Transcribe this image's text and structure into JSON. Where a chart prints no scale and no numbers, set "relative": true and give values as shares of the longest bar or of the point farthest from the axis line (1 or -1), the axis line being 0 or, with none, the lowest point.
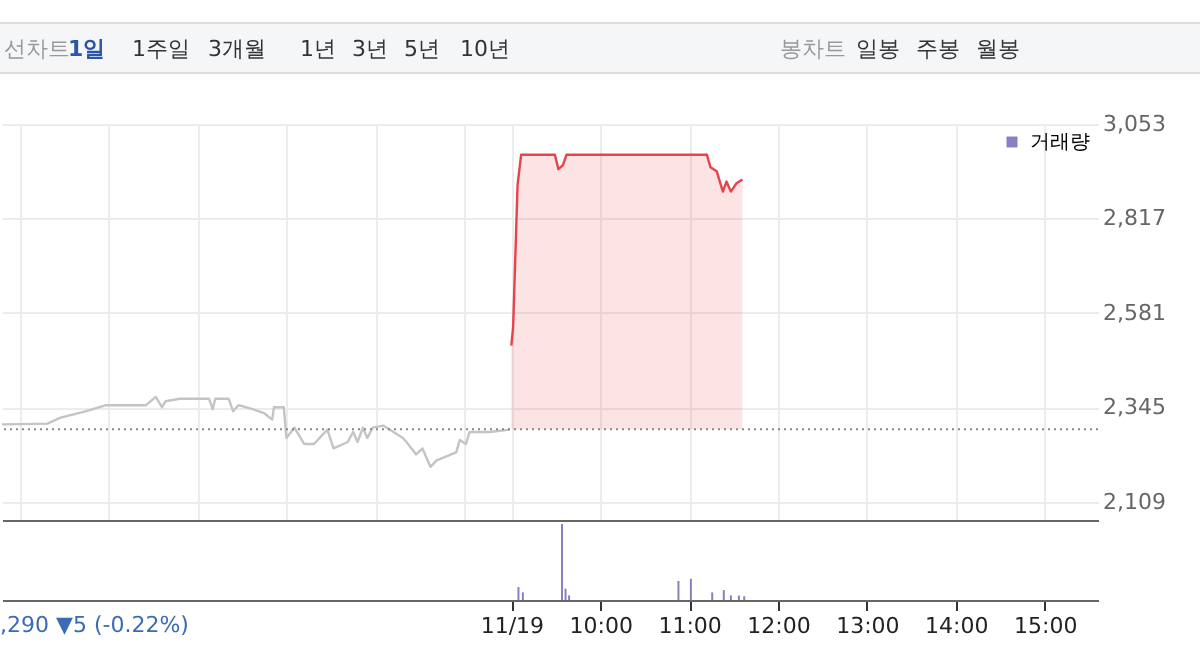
{
  "chart_data": [
    {
      "type": "line",
      "annotations": [
        "선차트",
        "1일",
        "1주일",
        "3개월",
        "1년",
        "3년",
        "5년",
        "10년",
        "봉차트",
        "일봉",
        "주봉",
        "월봉"
      ],
      "xlim": [
        3.27,
        15.6
      ],
      "xticks": [
        {
          "value": 3.47,
          "label": null
        },
        {
          "value": 4.47,
          "label": null
        },
        {
          "value": 5.47,
          "label": null
        },
        {
          "value": 6.47,
          "label": null
        },
        {
          "value": 7.47,
          "label": null
        },
        {
          "value": 8.47,
          "label": null
        },
        {
          "value": 9,
          "label": null
        },
        {
          "value": 10,
          "label": null
        },
        {
          "value": 11,
          "label": null
        },
        {
          "value": 12,
          "label": null
        },
        {
          "value": 13,
          "label": null
        },
        {
          "value": 14,
          "label": null
        },
        {
          "value": 15,
          "label": null
        }
      ],
      "ylim": [
        2063,
        3053
      ],
      "yticks": [
        {
          "value": 2109,
          "label": "2,109"
        },
        {
          "value": 2345,
          "label": "2,345"
        },
        {
          "value": 2581,
          "label": "2,581"
        },
        {
          "value": 2817,
          "label": "2,817"
        },
        {
          "value": 3053,
          "label": "3,053"
        }
      ],
      "grid": true,
      "tick_labels": "y",
      "series": [
        {
          "color": "#c4c4c8",
          "x": [
            3.27,
            3.78,
            3.93,
            4.22,
            4.44,
            4.89,
            5.0,
            5.07,
            5.11,
            5.27,
            5.6,
            5.64,
            5.67,
            5.82,
            5.87,
            5.93,
            6.09,
            6.22,
            6.31,
            6.33,
            6.44,
            6.47,
            6.56,
            6.67,
            6.78,
            6.93,
            7.0,
            7.16,
            7.22,
            7.27,
            7.33,
            7.38,
            7.44,
            7.56,
            7.78,
            7.82,
            7.93,
            8.0,
            8.09,
            8.16,
            8.38,
            8.42,
            8.49,
            8.53,
            8.76,
            8.98
          ],
          "values": [
            2302,
            2304,
            2319,
            2335,
            2350,
            2350,
            2371,
            2345,
            2360,
            2366,
            2366,
            2340,
            2366,
            2366,
            2335,
            2350,
            2340,
            2330,
            2314,
            2345,
            2345,
            2268,
            2294,
            2253,
            2253,
            2289,
            2242,
            2258,
            2283,
            2258,
            2294,
            2268,
            2294,
            2299,
            2268,
            2258,
            2227,
            2242,
            2196,
            2212,
            2232,
            2263,
            2253,
            2283,
            2283,
            2289
          ]
        },
        {
          "type": "area",
          "color": "#e8424a",
          "x": [
            9.0,
            9.02,
            9.07,
            9.11,
            9.49,
            9.53,
            9.58,
            9.62,
            11.2,
            11.24,
            11.31,
            11.38,
            11.42,
            11.47,
            11.53,
            11.6
          ],
          "values": [
            2499,
            2545,
            2900,
            2976,
            2976,
            2940,
            2950,
            2976,
            2976,
            2945,
            2935,
            2884,
            2909,
            2884,
            2904,
            2914
          ]
        }
      ],
      "ref_lines": [
        {
          "axis": "y",
          "value": 2290,
          "color": "#888888",
          "line_style": "dotted"
        }
      ]
    },
    {
      "type": "bar",
      "relative": true,
      "legend": "top right",
      "tick_labels": "x",
      "annotations": [
        ",290 ▼5 (-0.22%)"
      ],
      "xlim": [
        3.27,
        15.6
      ],
      "xticks": [
        {
          "value": 9,
          "label": "11/19"
        },
        {
          "value": 10,
          "label": "10:00"
        },
        {
          "value": 11,
          "label": "11:00"
        },
        {
          "value": 12,
          "label": "12:00"
        },
        {
          "value": 13,
          "label": "13:00"
        },
        {
          "value": 14,
          "label": "14:00"
        },
        {
          "value": 15,
          "label": "15:00"
        }
      ],
      "series": [
        {
          "name": "거래량",
          "color": "#8a7fc0",
          "x": [
            9.08,
            9.13,
            9.57,
            9.61,
            9.65,
            10.88,
            11.02,
            11.26,
            11.39,
            11.47,
            11.56,
            11.62
          ],
          "values": [
            0.17,
            0.1,
            1,
            0.15,
            0.06,
            0.25,
            0.28,
            0.1,
            0.13,
            0.06,
            0.06,
            0.05
          ]
        }
      ]
    }
  ]
}
